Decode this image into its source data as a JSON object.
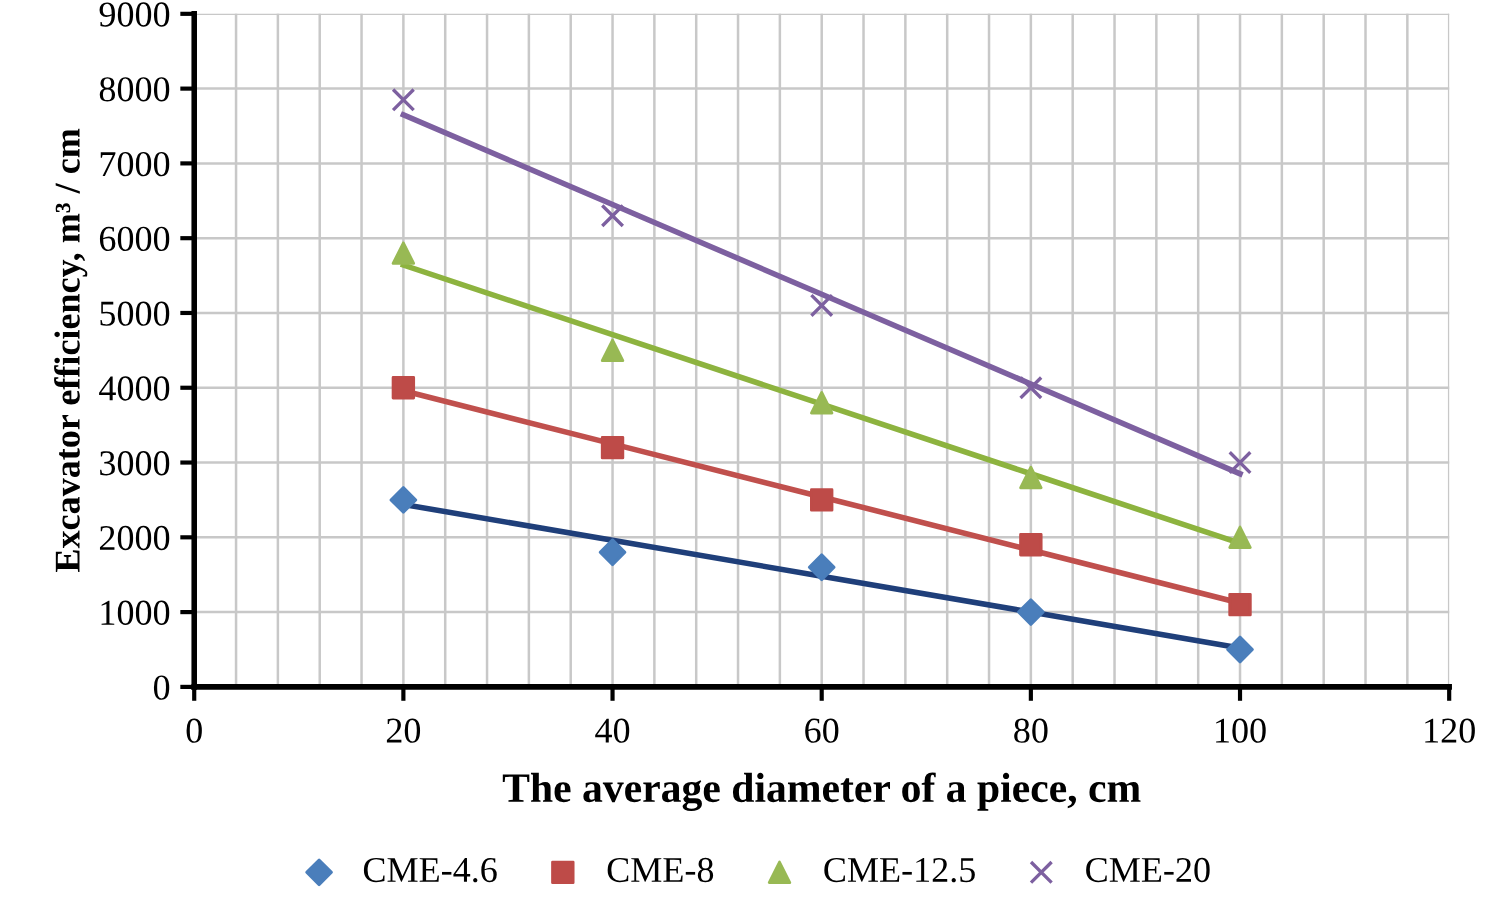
{
  "chart_data": {
    "type": "scatter",
    "xlabel": "The average diameter of a piece, cm",
    "ylabel": "Excavator efficiency, m³ / cm",
    "x": [
      20,
      40,
      60,
      80,
      100
    ],
    "series": [
      {
        "name": "CME-4.6",
        "color": "#4a7ebb",
        "marker": "diamond",
        "values": [
          2500,
          1800,
          1600,
          1000,
          500
        ]
      },
      {
        "name": "CME-8",
        "color": "#be4b48",
        "marker": "square",
        "values": [
          4000,
          3200,
          2500,
          1900,
          1100
        ]
      },
      {
        "name": "CME-12.5",
        "color": "#98b954",
        "marker": "triangle",
        "values": [
          5800,
          4500,
          3800,
          2800,
          2000
        ]
      },
      {
        "name": "CME-20",
        "color": "#7d60a0",
        "marker": "cross",
        "values": [
          7850,
          6300,
          5100,
          4000,
          3000
        ]
      },
      {
        "type": "line",
        "color": "#1f3f7a",
        "values": [
          2440,
          1960,
          1480,
          1000,
          520
        ]
      },
      {
        "type": "line",
        "color": "#c0504d",
        "values": [
          3960,
          3250,
          2540,
          1830,
          1120
        ]
      },
      {
        "type": "line",
        "color": "#8db33f",
        "values": [
          5640,
          4710,
          3780,
          2850,
          1920
        ]
      },
      {
        "type": "line",
        "color": "#7d60a0",
        "values": [
          7650,
          6450,
          5250,
          4050,
          2850
        ]
      }
    ],
    "xlim": [
      0,
      120
    ],
    "xticks": [
      0,
      20,
      40,
      60,
      80,
      100,
      120
    ],
    "ylim": [
      0,
      9000
    ],
    "yticks": [
      0,
      1000,
      2000,
      3000,
      4000,
      5000,
      6000,
      7000,
      8000,
      9000
    ],
    "grid": true,
    "legend": "bottom"
  }
}
